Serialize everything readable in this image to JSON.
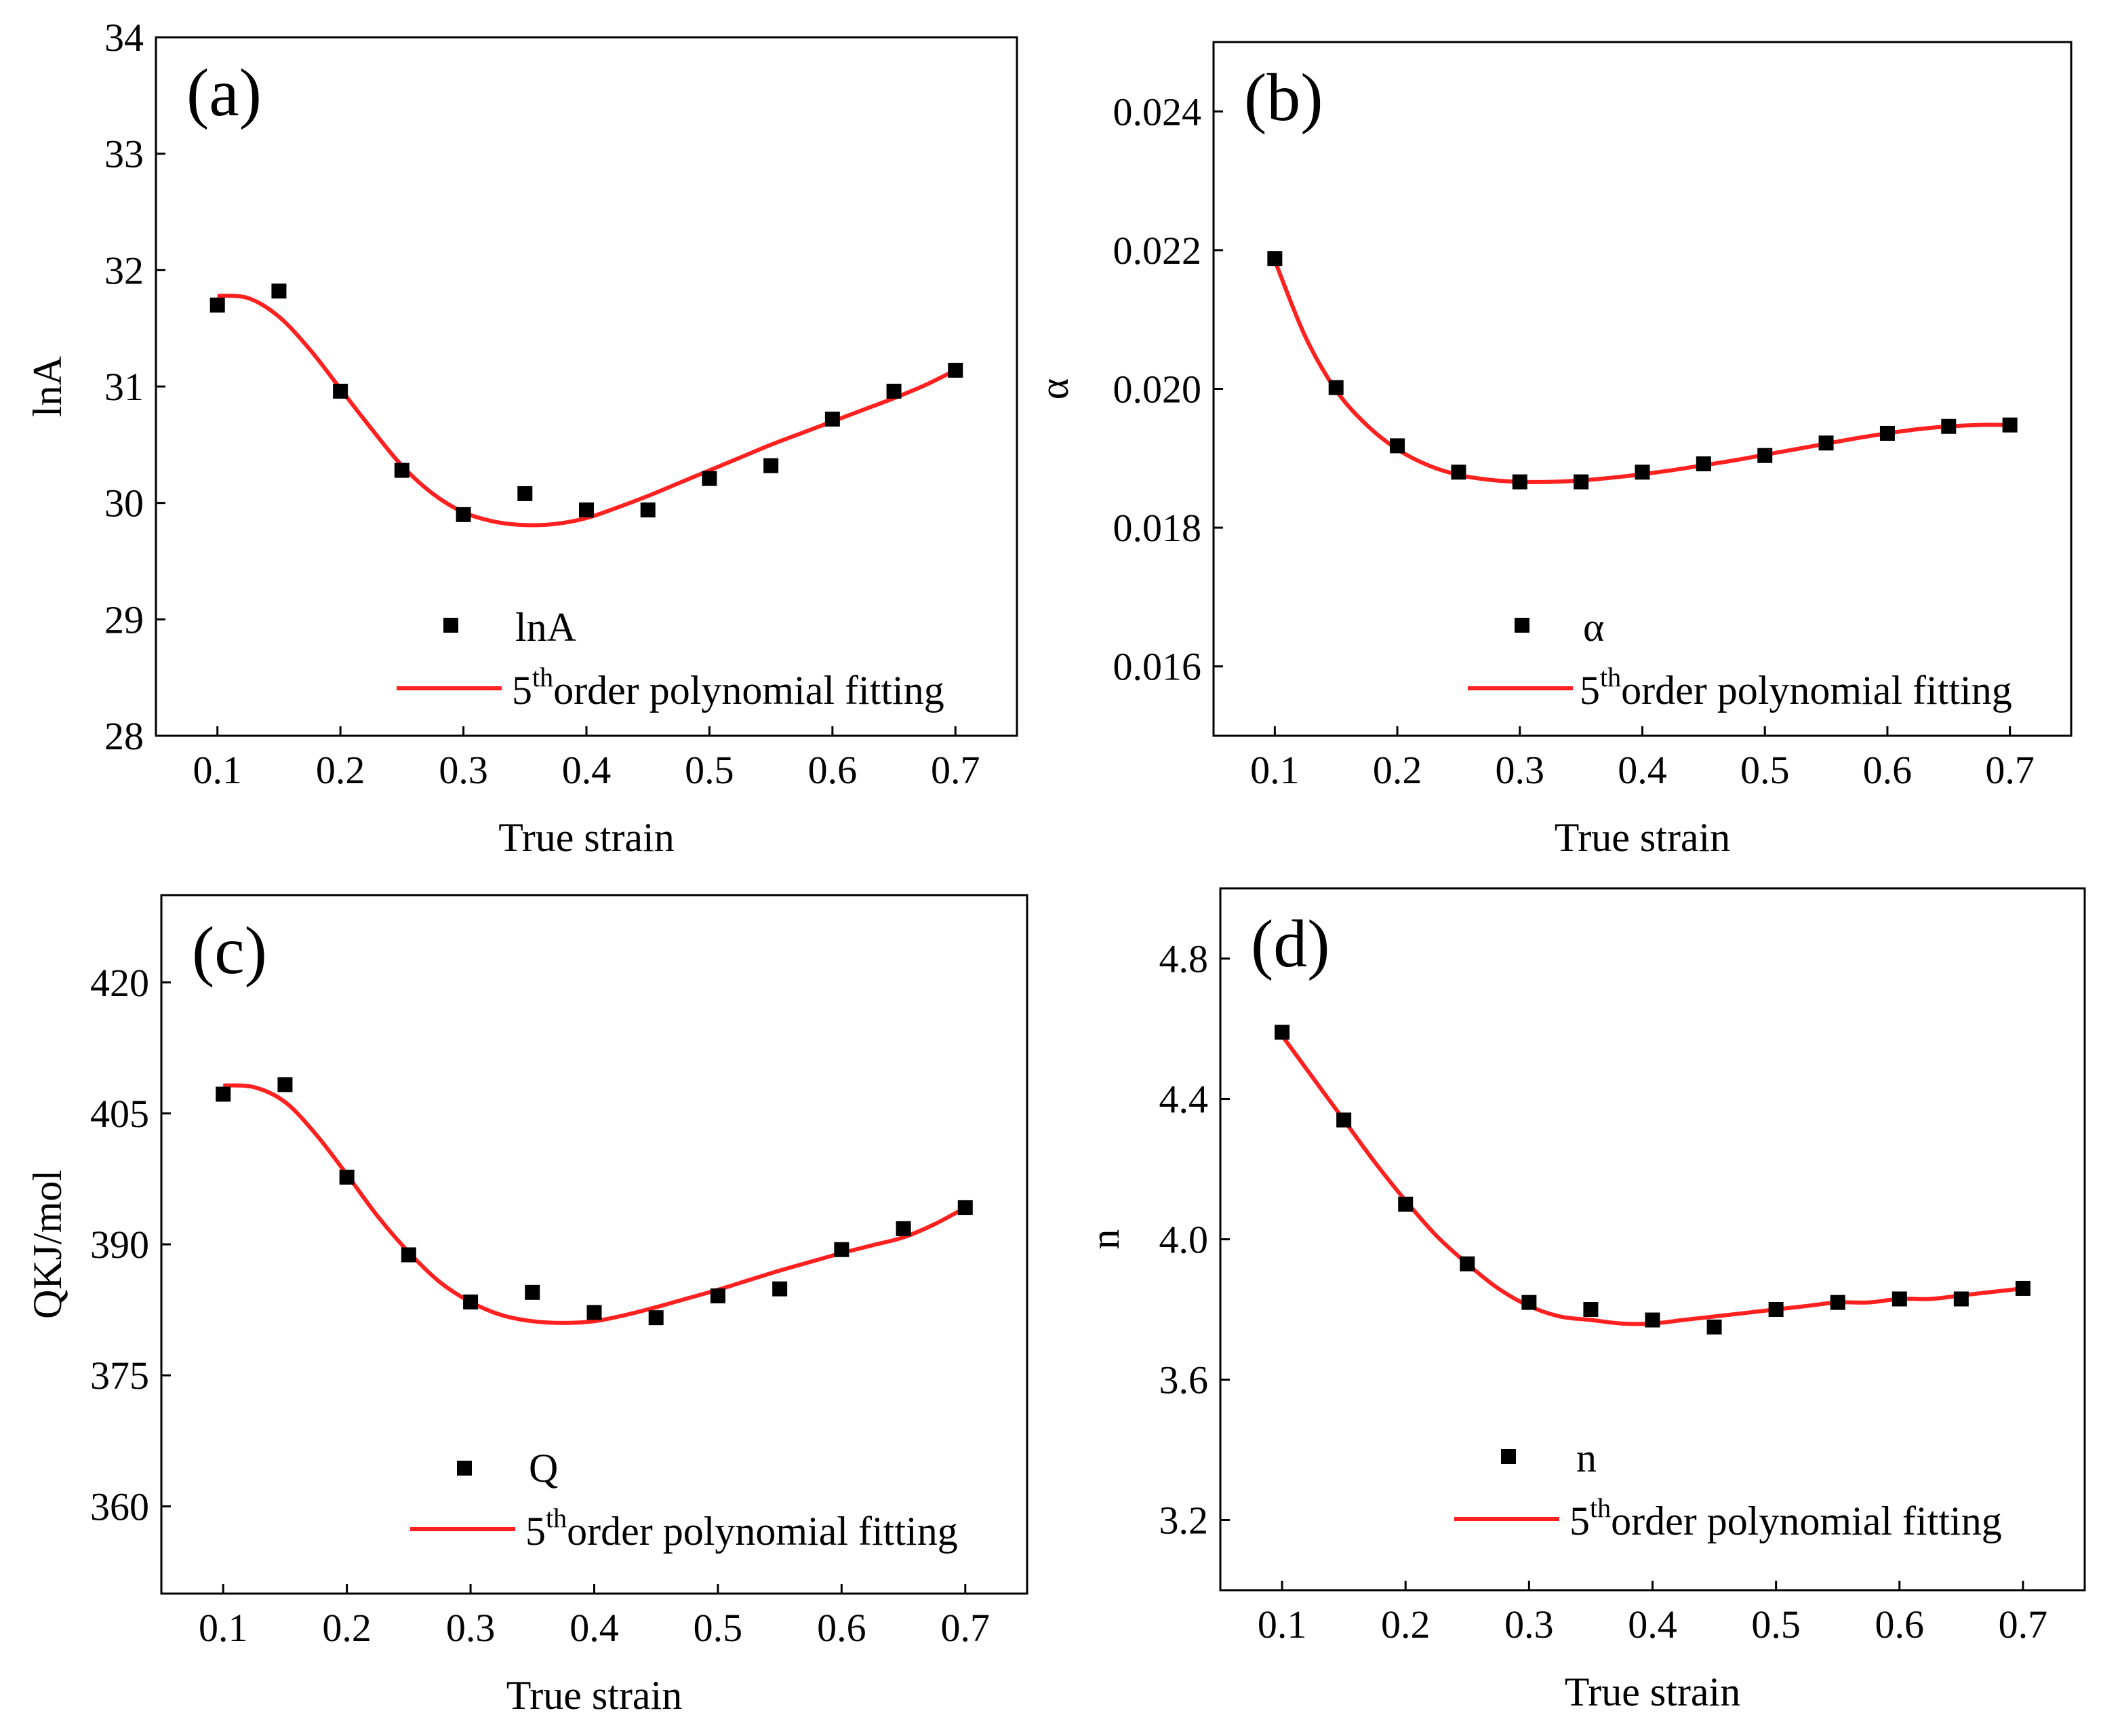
{
  "chart_data": [
    {
      "panel": "(a)",
      "type": "scatter",
      "xlabel": "True strain",
      "ylabel": "lnA",
      "xlim": [
        0.05,
        0.75
      ],
      "ylim": [
        28,
        34
      ],
      "xticks": [
        0.1,
        0.2,
        0.3,
        0.4,
        0.5,
        0.6,
        0.7
      ],
      "yticks": [
        28,
        29,
        30,
        31,
        32,
        33,
        34
      ],
      "ytick_format": "0",
      "grid": false,
      "legend": {
        "position": "bottom-right",
        "marker_label": "lnA",
        "line_label_base": "5",
        "line_label_sup": "th",
        "line_label_rest": "order polynomial fitting"
      },
      "series": [
        {
          "name": "lnA",
          "kind": "points",
          "color": "#000000",
          "x": [
            0.1,
            0.15,
            0.2,
            0.25,
            0.3,
            0.35,
            0.4,
            0.45,
            0.5,
            0.55,
            0.6,
            0.65,
            0.7
          ],
          "y": [
            31.7,
            31.82,
            30.96,
            30.28,
            29.9,
            30.08,
            29.94,
            29.94,
            30.21,
            30.32,
            30.72,
            30.96,
            31.14
          ]
        },
        {
          "name": "5th order polynomial fitting",
          "kind": "line",
          "color": "#ff2020",
          "x": [
            0.1,
            0.125,
            0.15,
            0.175,
            0.2,
            0.225,
            0.25,
            0.275,
            0.3,
            0.325,
            0.35,
            0.375,
            0.4,
            0.425,
            0.45,
            0.475,
            0.5,
            0.525,
            0.55,
            0.575,
            0.6,
            0.625,
            0.65,
            0.675,
            0.7
          ],
          "y": [
            31.78,
            31.76,
            31.6,
            31.32,
            30.98,
            30.64,
            30.32,
            30.08,
            29.92,
            29.84,
            29.81,
            29.82,
            29.87,
            29.96,
            30.06,
            30.17,
            30.28,
            30.39,
            30.5,
            30.6,
            30.7,
            30.8,
            30.9,
            31.01,
            31.14
          ]
        }
      ]
    },
    {
      "panel": "(b)",
      "type": "scatter",
      "xlabel": "True strain",
      "ylabel": "α",
      "xlim": [
        0.05,
        0.75
      ],
      "ylim": [
        0.015,
        0.025
      ],
      "xticks": [
        0.1,
        0.2,
        0.3,
        0.4,
        0.5,
        0.6,
        0.7
      ],
      "yticks": [
        0.016,
        0.018,
        0.02,
        0.022,
        0.024
      ],
      "ytick_format": "0.000",
      "grid": false,
      "legend": {
        "position": "bottom-right",
        "marker_label": "α",
        "line_label_base": "5",
        "line_label_sup": "th",
        "line_label_rest": "order polynomial fitting"
      },
      "series": [
        {
          "name": "α",
          "kind": "points",
          "color": "#000000",
          "x": [
            0.1,
            0.15,
            0.2,
            0.25,
            0.3,
            0.35,
            0.4,
            0.45,
            0.5,
            0.55,
            0.6,
            0.65,
            0.7
          ],
          "y": [
            0.02188,
            0.02002,
            0.01918,
            0.0188,
            0.01866,
            0.01866,
            0.0188,
            0.01892,
            0.01904,
            0.01922,
            0.01936,
            0.01946,
            0.01948
          ]
        },
        {
          "name": "5th order polynomial fitting",
          "kind": "line",
          "color": "#ff2020",
          "x": [
            0.1,
            0.125,
            0.15,
            0.175,
            0.2,
            0.225,
            0.25,
            0.275,
            0.3,
            0.325,
            0.35,
            0.375,
            0.4,
            0.425,
            0.45,
            0.475,
            0.5,
            0.525,
            0.55,
            0.575,
            0.6,
            0.625,
            0.65,
            0.675,
            0.7
          ],
          "y": [
            0.02185,
            0.02075,
            0.01998,
            0.01948,
            0.01913,
            0.0189,
            0.01876,
            0.01869,
            0.01866,
            0.01866,
            0.01868,
            0.01872,
            0.01877,
            0.01883,
            0.0189,
            0.01897,
            0.01905,
            0.01913,
            0.01921,
            0.01929,
            0.01936,
            0.01942,
            0.01946,
            0.01948,
            0.01948
          ]
        }
      ]
    },
    {
      "panel": "(c)",
      "type": "scatter",
      "xlabel": "True strain",
      "ylabel": "QKJ/mol",
      "xlim": [
        0.05,
        0.75
      ],
      "ylim": [
        350,
        430
      ],
      "xticks": [
        0.1,
        0.2,
        0.3,
        0.4,
        0.5,
        0.6,
        0.7
      ],
      "yticks": [
        360,
        375,
        390,
        405,
        420
      ],
      "ytick_format": "0",
      "grid": false,
      "legend": {
        "position": "bottom-right",
        "marker_label": "Q",
        "line_label_base": "5",
        "line_label_sup": "th",
        "line_label_rest": "order polynomial fitting"
      },
      "series": [
        {
          "name": "Q",
          "kind": "points",
          "color": "#000000",
          "x": [
            0.1,
            0.15,
            0.2,
            0.25,
            0.3,
            0.35,
            0.4,
            0.45,
            0.5,
            0.55,
            0.6,
            0.65,
            0.7
          ],
          "y": [
            407.2,
            408.3,
            397.7,
            388.8,
            383.4,
            384.5,
            382.2,
            381.6,
            384.1,
            384.9,
            389.4,
            391.8,
            394.2
          ]
        },
        {
          "name": "5th order polynomial fitting",
          "kind": "line",
          "color": "#ff2020",
          "x": [
            0.1,
            0.125,
            0.15,
            0.175,
            0.2,
            0.225,
            0.25,
            0.275,
            0.3,
            0.325,
            0.35,
            0.375,
            0.4,
            0.425,
            0.45,
            0.475,
            0.5,
            0.525,
            0.55,
            0.575,
            0.6,
            0.625,
            0.65,
            0.675,
            0.7
          ],
          "y": [
            408.2,
            408.0,
            406.3,
            402.6,
            398.0,
            393.2,
            389.1,
            385.7,
            383.4,
            381.9,
            381.2,
            381.0,
            381.2,
            381.9,
            382.8,
            383.8,
            384.8,
            385.9,
            387.0,
            388.0,
            389.0,
            389.9,
            390.8,
            392.3,
            394.2
          ]
        }
      ]
    },
    {
      "panel": "(d)",
      "type": "scatter",
      "xlabel": "True strain",
      "ylabel": "n",
      "xlim": [
        0.05,
        0.75
      ],
      "ylim": [
        3.0,
        5.0
      ],
      "xticks": [
        0.1,
        0.2,
        0.3,
        0.4,
        0.5,
        0.6,
        0.7
      ],
      "yticks": [
        3.2,
        3.6,
        4.0,
        4.4,
        4.8
      ],
      "ytick_format": "0.0",
      "grid": false,
      "legend": {
        "position": "bottom-right",
        "marker_label": "n",
        "line_label_base": "5",
        "line_label_sup": "th",
        "line_label_rest": "order polynomial fitting"
      },
      "series": [
        {
          "name": "n",
          "kind": "points",
          "color": "#000000",
          "x": [
            0.1,
            0.15,
            0.2,
            0.25,
            0.3,
            0.35,
            0.4,
            0.45,
            0.5,
            0.55,
            0.6,
            0.65,
            0.7
          ],
          "y": [
            4.59,
            4.34,
            4.1,
            3.93,
            3.82,
            3.8,
            3.77,
            3.75,
            3.8,
            3.82,
            3.83,
            3.83,
            3.86
          ]
        },
        {
          "name": "5th order polynomial fitting",
          "kind": "line",
          "color": "#ff2020",
          "x": [
            0.1,
            0.125,
            0.15,
            0.175,
            0.2,
            0.225,
            0.25,
            0.275,
            0.3,
            0.325,
            0.35,
            0.375,
            0.4,
            0.425,
            0.45,
            0.475,
            0.5,
            0.525,
            0.55,
            0.575,
            0.6,
            0.625,
            0.65,
            0.675,
            0.7
          ],
          "y": [
            4.58,
            4.46,
            4.34,
            4.22,
            4.11,
            4.01,
            3.93,
            3.86,
            3.81,
            3.78,
            3.77,
            3.76,
            3.76,
            3.77,
            3.78,
            3.79,
            3.8,
            3.81,
            3.82,
            3.82,
            3.83,
            3.83,
            3.84,
            3.85,
            3.86
          ]
        }
      ]
    }
  ]
}
